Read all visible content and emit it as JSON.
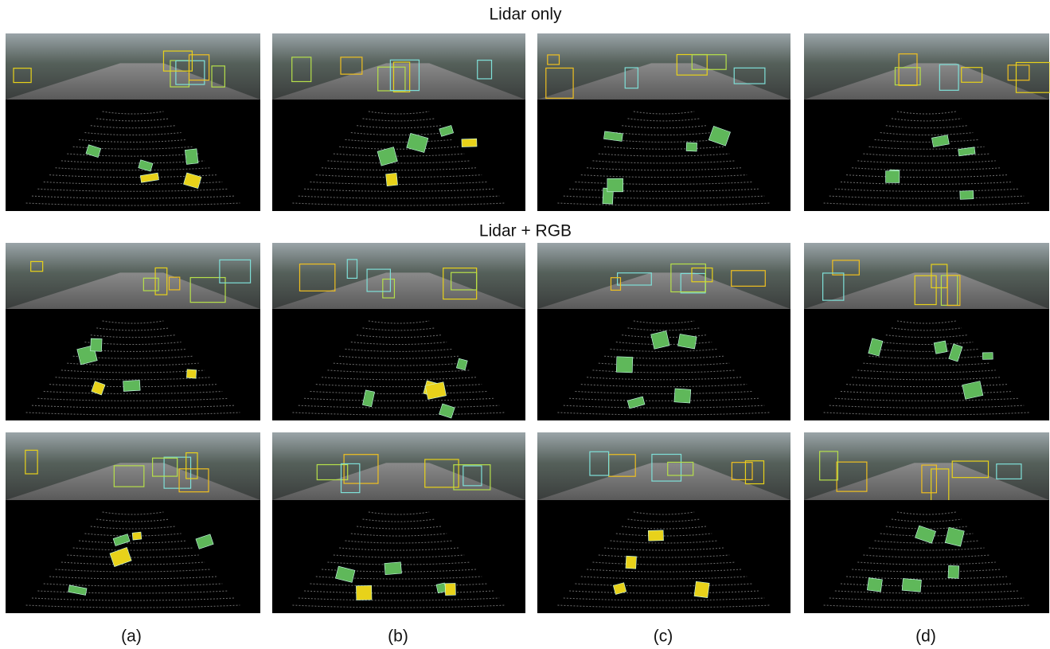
{
  "section_titles": [
    "Lidar only",
    "Lidar + RGB"
  ],
  "column_labels": [
    "(a)",
    "(b)",
    "(c)",
    "(d)"
  ]
}
